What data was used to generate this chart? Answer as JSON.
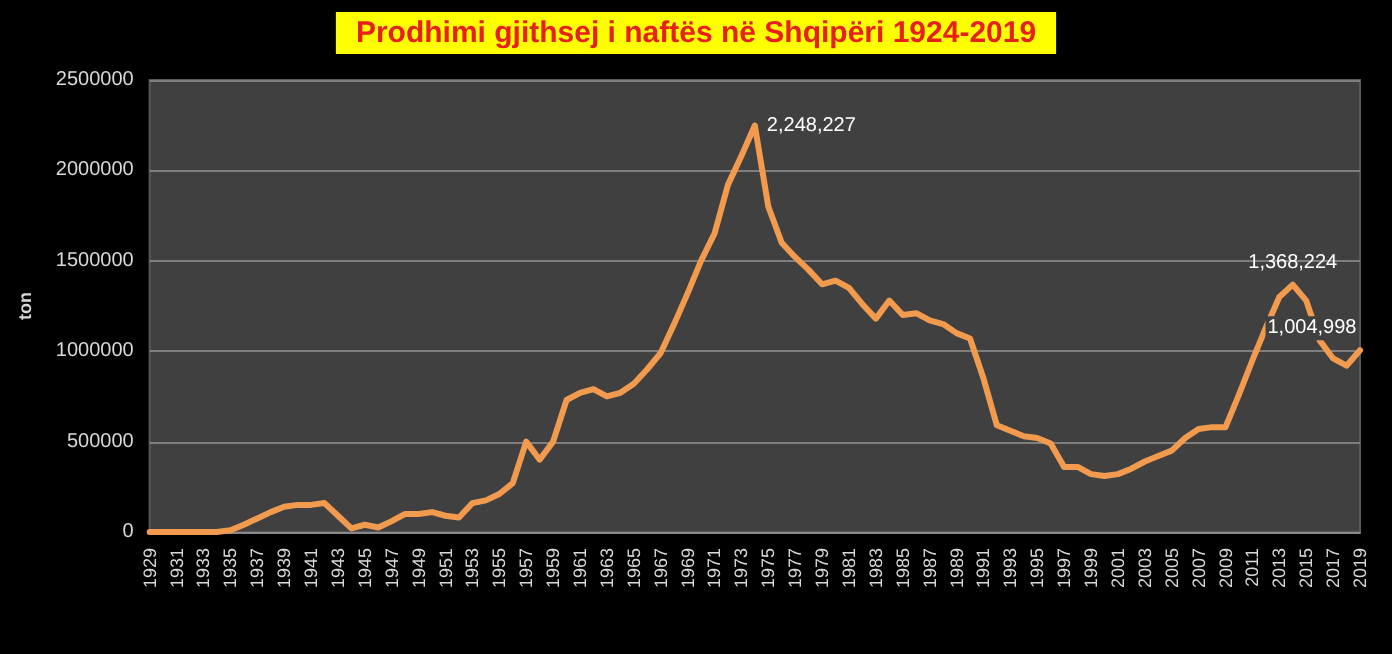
{
  "chart_data": {
    "type": "line",
    "title": "Prodhimi gjithsej i naftës në Shqipëri 1924-2019",
    "ylabel": "ton",
    "categories": [
      "1929",
      null,
      "1931",
      null,
      "1933",
      null,
      "1935",
      null,
      "1937",
      null,
      "1939",
      null,
      "1941",
      null,
      "1943",
      null,
      "1945",
      null,
      "1947",
      null,
      "1949",
      null,
      "1951",
      null,
      "1953",
      null,
      "1955",
      null,
      "1957",
      null,
      "1959",
      null,
      "1961",
      null,
      "1963",
      null,
      "1965",
      null,
      "1967",
      null,
      "1969",
      null,
      "1971",
      null,
      "1973",
      null,
      "1975",
      null,
      "1977",
      null,
      "1979",
      null,
      "1981",
      null,
      "1983",
      null,
      "1985",
      null,
      "1987",
      null,
      "1989",
      null,
      "1991",
      null,
      "1993",
      null,
      "1995",
      null,
      "1997",
      null,
      "1999",
      null,
      "2001",
      null,
      "2003",
      null,
      "2005",
      null,
      "2007",
      null,
      "2009",
      null,
      "2011",
      null,
      "2013",
      null,
      "2015",
      null,
      "2017",
      null,
      "2019"
    ],
    "series": [
      {
        "color": "#f29b4f",
        "values": [
          0,
          0,
          0,
          0,
          0,
          0,
          10000,
          40000,
          75000,
          110000,
          140000,
          150000,
          150000,
          160000,
          90000,
          20000,
          40000,
          25000,
          60000,
          100000,
          100000,
          110000,
          90000,
          80000,
          160000,
          175000,
          210000,
          270000,
          500000,
          400000,
          500000,
          730000,
          770000,
          790000,
          750000,
          770000,
          820000,
          900000,
          990000,
          1150000,
          1320000,
          1500000,
          1650000,
          1920000,
          2080000,
          2248227,
          1800000,
          1600000,
          1520000,
          1450000,
          1370000,
          1390000,
          1350000,
          1260000,
          1180000,
          1280000,
          1200000,
          1210000,
          1170000,
          1150000,
          1100000,
          1070000,
          850000,
          590000,
          560000,
          530000,
          520000,
          490000,
          360000,
          360000,
          320000,
          310000,
          320000,
          350000,
          390000,
          420000,
          450000,
          520000,
          570000,
          580000,
          580000,
          760000,
          950000,
          1130000,
          1300000,
          1368224,
          1280000,
          1060000,
          960000,
          920000,
          1004998
        ],
        "value_labels": [
          null,
          null,
          null,
          null,
          null,
          null,
          null,
          null,
          null,
          null,
          null,
          null,
          null,
          null,
          null,
          null,
          null,
          null,
          null,
          null,
          null,
          null,
          null,
          null,
          null,
          null,
          null,
          null,
          null,
          null,
          null,
          null,
          null,
          null,
          null,
          null,
          null,
          null,
          null,
          null,
          null,
          null,
          null,
          null,
          null,
          "2,248,227",
          null,
          null,
          null,
          null,
          null,
          null,
          null,
          null,
          null,
          null,
          null,
          null,
          null,
          null,
          null,
          null,
          null,
          null,
          null,
          null,
          null,
          null,
          null,
          null,
          null,
          null,
          null,
          null,
          null,
          null,
          null,
          null,
          null,
          null,
          null,
          null,
          null,
          null,
          null,
          "1,368,224",
          null,
          null,
          null,
          null,
          "1,004,998"
        ]
      }
    ],
    "ylim": [
      0,
      2500000
    ],
    "yticks": [
      0,
      500000,
      1000000,
      1500000,
      2000000,
      2500000
    ],
    "grid": "y",
    "marker": "none",
    "line_style": "solid"
  }
}
